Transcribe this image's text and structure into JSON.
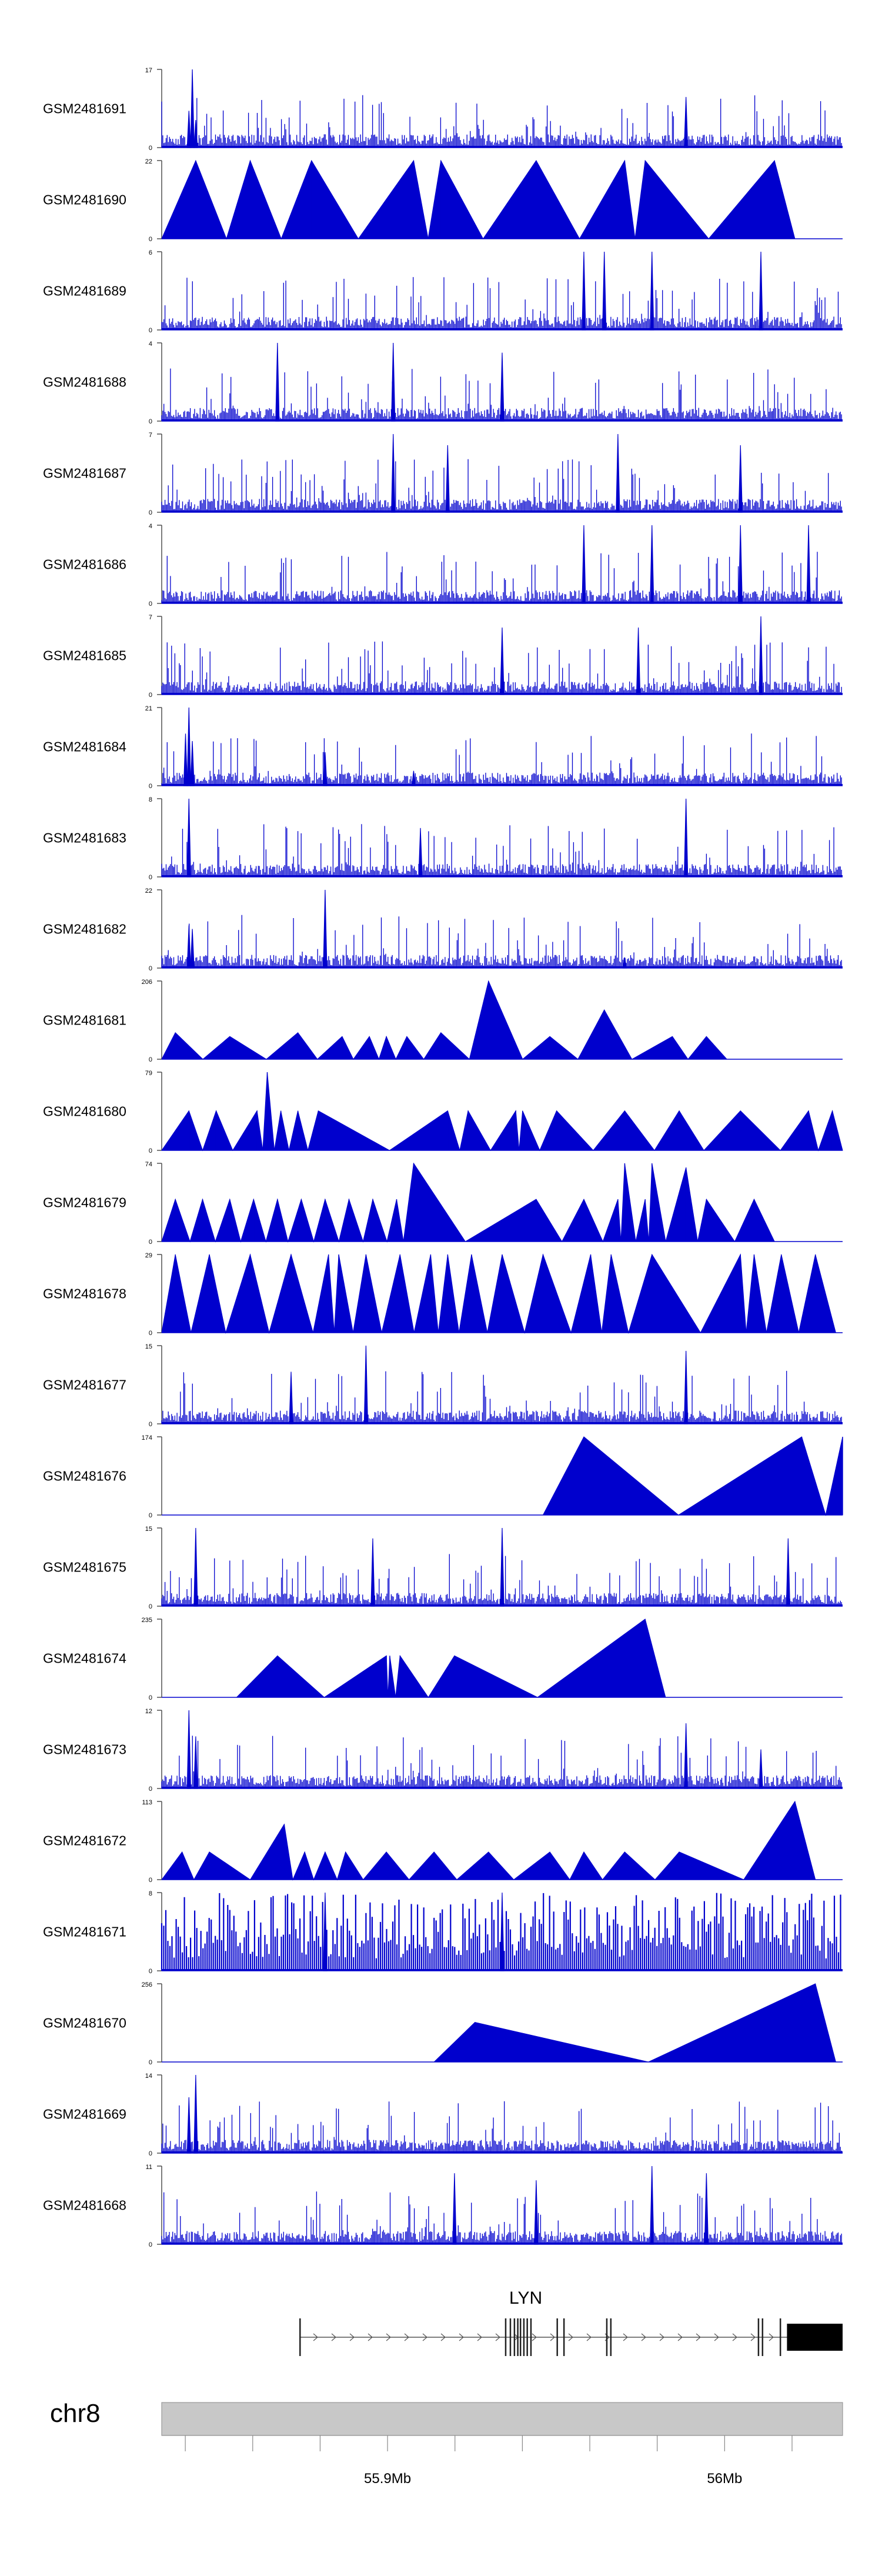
{
  "chart_data": {
    "type": "area",
    "title": "",
    "chromosome": "chr8",
    "gene": {
      "name": "LYN",
      "strand": "+",
      "exons": [
        55874000,
        55935000,
        55936400,
        55937600,
        55938600,
        55939400,
        55940400,
        55941400,
        55942500,
        55950300,
        55952300,
        55965000,
        55966200,
        56010000,
        56011200,
        56016500,
        56018500
      ]
    },
    "genome_axis": {
      "range_bp": [
        55833000,
        56035000
      ],
      "ticks_bp": [
        55840000,
        55860000,
        55880000,
        55900000,
        55920000,
        55940000,
        55960000,
        55980000,
        56000000,
        56020000
      ],
      "labels": [
        {
          "bp": 55900000,
          "text": "55.9Mb"
        },
        {
          "bp": 56000000,
          "text": "56Mb"
        }
      ]
    },
    "tracks": [
      {
        "name": "GSM2481691",
        "ymax": 17,
        "style": "dense",
        "peaks": [
          [
            0.04,
            8
          ],
          [
            0.045,
            17
          ],
          [
            0.05,
            6
          ],
          [
            0.77,
            11
          ]
        ]
      },
      {
        "name": "GSM2481690",
        "ymax": 22,
        "style": "triangles",
        "peaks": [
          [
            0.05,
            22
          ],
          [
            0.13,
            22
          ],
          [
            0.22,
            22
          ],
          [
            0.37,
            22
          ],
          [
            0.41,
            22
          ],
          [
            0.55,
            22
          ],
          [
            0.68,
            22
          ],
          [
            0.71,
            22
          ],
          [
            0.9,
            22
          ]
        ]
      },
      {
        "name": "GSM2481689",
        "ymax": 6,
        "style": "dense",
        "peaks": [
          [
            0.62,
            6
          ],
          [
            0.65,
            6
          ],
          [
            0.72,
            6
          ],
          [
            0.88,
            6
          ]
        ]
      },
      {
        "name": "GSM2481688",
        "ymax": 4,
        "style": "dense",
        "peaks": [
          [
            0.17,
            4
          ],
          [
            0.34,
            4
          ],
          [
            0.5,
            3.5
          ]
        ]
      },
      {
        "name": "GSM2481687",
        "ymax": 7,
        "style": "dense",
        "peaks": [
          [
            0.34,
            7
          ],
          [
            0.42,
            6
          ],
          [
            0.67,
            7
          ],
          [
            0.85,
            6
          ]
        ]
      },
      {
        "name": "GSM2481686",
        "ymax": 4,
        "style": "dense",
        "peaks": [
          [
            0.62,
            4
          ],
          [
            0.72,
            4
          ],
          [
            0.85,
            4
          ],
          [
            0.95,
            4
          ]
        ]
      },
      {
        "name": "GSM2481685",
        "ymax": 7,
        "style": "dense",
        "peaks": [
          [
            0.5,
            6
          ],
          [
            0.7,
            6
          ],
          [
            0.88,
            7
          ]
        ]
      },
      {
        "name": "GSM2481684",
        "ymax": 21,
        "style": "dense",
        "peaks": [
          [
            0.035,
            14
          ],
          [
            0.04,
            21
          ],
          [
            0.045,
            12
          ],
          [
            0.24,
            9
          ],
          [
            0.37,
            4
          ]
        ]
      },
      {
        "name": "GSM2481683",
        "ymax": 8,
        "style": "dense",
        "peaks": [
          [
            0.04,
            8
          ],
          [
            0.38,
            5
          ],
          [
            0.77,
            8
          ]
        ]
      },
      {
        "name": "GSM2481682",
        "ymax": 22,
        "style": "dense",
        "peaks": [
          [
            0.04,
            12
          ],
          [
            0.045,
            11
          ],
          [
            0.24,
            22
          ],
          [
            0.68,
            3
          ]
        ]
      },
      {
        "name": "GSM2481681",
        "ymax": 206,
        "style": "triangles",
        "peaks": [
          [
            0.02,
            70
          ],
          [
            0.1,
            60
          ],
          [
            0.2,
            70
          ],
          [
            0.265,
            60
          ],
          [
            0.305,
            60
          ],
          [
            0.33,
            60
          ],
          [
            0.36,
            60
          ],
          [
            0.41,
            70
          ],
          [
            0.48,
            206
          ],
          [
            0.57,
            60
          ],
          [
            0.65,
            130
          ],
          [
            0.75,
            60
          ],
          [
            0.8,
            60
          ]
        ]
      },
      {
        "name": "GSM2481680",
        "ymax": 79,
        "style": "triangles",
        "peaks": [
          [
            0.04,
            40
          ],
          [
            0.08,
            40
          ],
          [
            0.14,
            40
          ],
          [
            0.155,
            79
          ],
          [
            0.175,
            40
          ],
          [
            0.2,
            40
          ],
          [
            0.23,
            40
          ],
          [
            0.42,
            40
          ],
          [
            0.45,
            40
          ],
          [
            0.52,
            40
          ],
          [
            0.53,
            40
          ],
          [
            0.58,
            40
          ],
          [
            0.68,
            40
          ],
          [
            0.76,
            40
          ],
          [
            0.85,
            40
          ],
          [
            0.95,
            40
          ],
          [
            0.985,
            40
          ]
        ]
      },
      {
        "name": "GSM2481679",
        "ymax": 74,
        "style": "triangles",
        "peaks": [
          [
            0.02,
            40
          ],
          [
            0.06,
            40
          ],
          [
            0.1,
            40
          ],
          [
            0.135,
            40
          ],
          [
            0.17,
            40
          ],
          [
            0.205,
            40
          ],
          [
            0.24,
            40
          ],
          [
            0.275,
            40
          ],
          [
            0.31,
            40
          ],
          [
            0.345,
            40
          ],
          [
            0.37,
            74
          ],
          [
            0.55,
            40
          ],
          [
            0.62,
            40
          ],
          [
            0.67,
            40
          ],
          [
            0.68,
            74
          ],
          [
            0.71,
            40
          ],
          [
            0.72,
            74
          ],
          [
            0.77,
            70
          ],
          [
            0.8,
            40
          ],
          [
            0.87,
            40
          ]
        ]
      },
      {
        "name": "GSM2481678",
        "ymax": 29,
        "style": "triangles",
        "peaks": [
          [
            0.02,
            29
          ],
          [
            0.07,
            29
          ],
          [
            0.13,
            29
          ],
          [
            0.19,
            29
          ],
          [
            0.245,
            29
          ],
          [
            0.26,
            29
          ],
          [
            0.3,
            29
          ],
          [
            0.35,
            29
          ],
          [
            0.395,
            29
          ],
          [
            0.42,
            29
          ],
          [
            0.455,
            29
          ],
          [
            0.5,
            29
          ],
          [
            0.56,
            29
          ],
          [
            0.63,
            29
          ],
          [
            0.66,
            29
          ],
          [
            0.72,
            29
          ],
          [
            0.85,
            29
          ],
          [
            0.87,
            29
          ],
          [
            0.91,
            29
          ],
          [
            0.96,
            29
          ]
        ]
      },
      {
        "name": "GSM2481677",
        "ymax": 15,
        "style": "dense",
        "peaks": [
          [
            0.19,
            10
          ],
          [
            0.3,
            15
          ],
          [
            0.77,
            14
          ]
        ]
      },
      {
        "name": "GSM2481676",
        "ymax": 174,
        "style": "triangles",
        "peaks": [
          [
            0.62,
            174
          ],
          [
            0.94,
            174
          ],
          [
            1.0,
            174
          ]
        ]
      },
      {
        "name": "GSM2481675",
        "ymax": 15,
        "style": "dense",
        "peaks": [
          [
            0.05,
            15
          ],
          [
            0.31,
            13
          ],
          [
            0.5,
            15
          ],
          [
            0.92,
            13
          ]
        ]
      },
      {
        "name": "GSM2481674",
        "ymax": 235,
        "style": "triangles",
        "peaks": [
          [
            0.17,
            125
          ],
          [
            0.33,
            125
          ],
          [
            0.335,
            125
          ],
          [
            0.35,
            125
          ],
          [
            0.43,
            125
          ],
          [
            0.71,
            235
          ]
        ]
      },
      {
        "name": "GSM2481673",
        "ymax": 12,
        "style": "dense",
        "peaks": [
          [
            0.04,
            12
          ],
          [
            0.05,
            8
          ],
          [
            0.77,
            10
          ],
          [
            0.88,
            6
          ]
        ]
      },
      {
        "name": "GSM2481672",
        "ymax": 113,
        "style": "triangles",
        "peaks": [
          [
            0.03,
            40
          ],
          [
            0.07,
            40
          ],
          [
            0.18,
            80
          ],
          [
            0.21,
            40
          ],
          [
            0.24,
            40
          ],
          [
            0.27,
            40
          ],
          [
            0.33,
            40
          ],
          [
            0.4,
            40
          ],
          [
            0.48,
            40
          ],
          [
            0.57,
            40
          ],
          [
            0.62,
            40
          ],
          [
            0.68,
            40
          ],
          [
            0.76,
            40
          ],
          [
            0.93,
            113
          ]
        ]
      },
      {
        "name": "GSM2481671",
        "ymax": 8,
        "style": "spikes",
        "peaks": [
          [
            0.24,
            8
          ],
          [
            0.5,
            8
          ]
        ]
      },
      {
        "name": "GSM2481670",
        "ymax": 256,
        "style": "triangles",
        "peaks": [
          [
            0.46,
            130
          ],
          [
            0.96,
            256
          ]
        ]
      },
      {
        "name": "GSM2481669",
        "ymax": 14,
        "style": "dense",
        "peaks": [
          [
            0.04,
            10
          ],
          [
            0.05,
            14
          ]
        ]
      },
      {
        "name": "GSM2481668",
        "ymax": 11,
        "style": "dense",
        "peaks": [
          [
            0.43,
            10
          ],
          [
            0.55,
            9
          ],
          [
            0.72,
            11
          ],
          [
            0.8,
            10
          ]
        ]
      }
    ]
  }
}
